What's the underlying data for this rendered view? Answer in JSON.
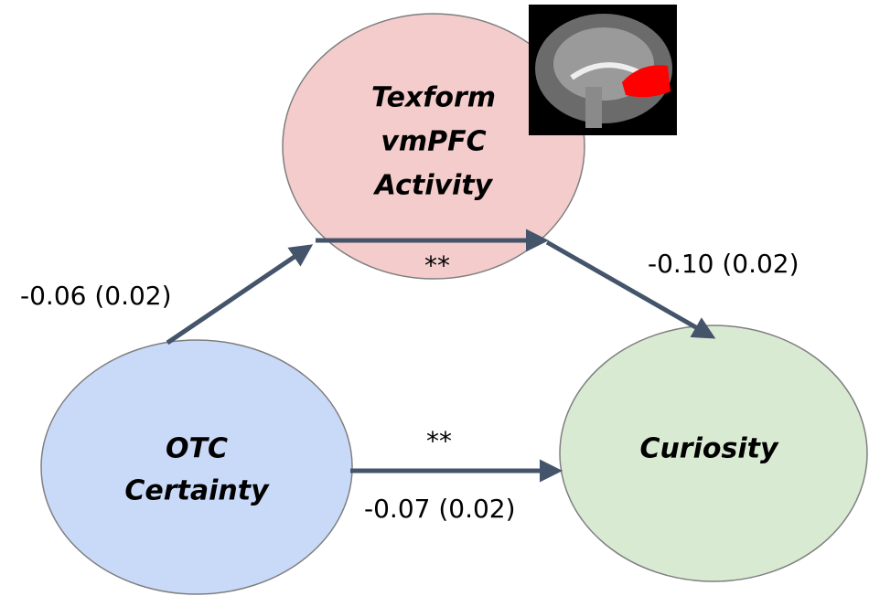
{
  "nodes": [
    {
      "label": [
        "Texform",
        "vmPFC",
        "Activity"
      ]
    },
    {
      "label": [
        "OTC",
        "Certainty"
      ]
    },
    {
      "label": [
        "Curiosity"
      ]
    }
  ],
  "edges": [
    {
      "coefficient": "-0.06 (0.02)"
    },
    {
      "coefficient": "-0.10 (0.02)"
    },
    {
      "coefficient": "-0.07 (0.02)",
      "significance": "**"
    },
    {
      "significance": "**"
    }
  ]
}
